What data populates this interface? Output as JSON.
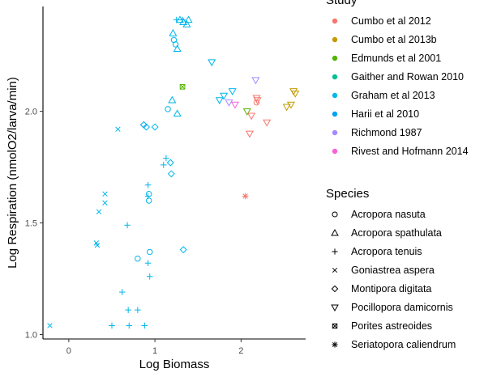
{
  "chart_data": {
    "type": "scatter",
    "xlabel": "Log Biomass",
    "ylabel": "Log Respiration (nmolO2/larva/min)",
    "xlim": [
      -0.3,
      2.75
    ],
    "ylim": [
      0.98,
      2.47
    ],
    "x_ticks": [
      0,
      1,
      2
    ],
    "y_ticks": [
      1.0,
      1.5,
      2.0
    ],
    "x_tick_labels": [
      "0",
      "1",
      "2"
    ],
    "y_tick_labels": [
      "1.0",
      "1.5",
      "2.0"
    ],
    "grid": false,
    "legend_position": "right",
    "legends": {
      "color": {
        "title": "Study",
        "entries": [
          {
            "label": "Cumbo et al 2012",
            "color": "#F8766D"
          },
          {
            "label": "Cumbo et al 2013b",
            "color": "#C49A00"
          },
          {
            "label": "Edmunds et al 2001",
            "color": "#53B400"
          },
          {
            "label": "Gaither and Rowan 2010",
            "color": "#00C094"
          },
          {
            "label": "Graham et al 2013",
            "color": "#00B6EB"
          },
          {
            "label": "Harii et al 2010",
            "color": "#00A2F3"
          },
          {
            "label": "Richmond 1987",
            "color": "#A58AFF"
          },
          {
            "label": "Rivest and Hofmann 2014",
            "color": "#FB61D7"
          }
        ]
      },
      "shape": {
        "title": "Species",
        "entries": [
          {
            "label": "Acropora nasuta",
            "shape": "circle"
          },
          {
            "label": "Acropora spathulata",
            "shape": "triangle-up"
          },
          {
            "label": "Acropora tenuis",
            "shape": "plus"
          },
          {
            "label": "Goniastrea aspera",
            "shape": "cross"
          },
          {
            "label": "Montipora digitata",
            "shape": "diamond"
          },
          {
            "label": "Pocillopora damicornis",
            "shape": "triangle-down"
          },
          {
            "label": "Porites astreoides",
            "shape": "square-cross"
          },
          {
            "label": "Seriatopora caliendrum",
            "shape": "asterisk"
          }
        ]
      }
    },
    "points": [
      {
        "x": -0.22,
        "y": 1.04,
        "study": 4,
        "shape": "cross"
      },
      {
        "x": 0.32,
        "y": 1.41,
        "study": 4,
        "shape": "cross"
      },
      {
        "x": 0.33,
        "y": 1.4,
        "study": 4,
        "shape": "cross"
      },
      {
        "x": 0.35,
        "y": 1.55,
        "study": 4,
        "shape": "cross"
      },
      {
        "x": 0.42,
        "y": 1.63,
        "study": 4,
        "shape": "cross"
      },
      {
        "x": 0.42,
        "y": 1.59,
        "study": 4,
        "shape": "cross"
      },
      {
        "x": 0.57,
        "y": 1.92,
        "study": 4,
        "shape": "cross"
      },
      {
        "x": 0.5,
        "y": 1.04,
        "study": 4,
        "shape": "plus"
      },
      {
        "x": 0.7,
        "y": 1.04,
        "study": 4,
        "shape": "plus"
      },
      {
        "x": 0.88,
        "y": 1.04,
        "study": 4,
        "shape": "plus"
      },
      {
        "x": 0.69,
        "y": 1.11,
        "study": 4,
        "shape": "plus"
      },
      {
        "x": 0.8,
        "y": 1.11,
        "study": 4,
        "shape": "plus"
      },
      {
        "x": 0.62,
        "y": 1.19,
        "study": 4,
        "shape": "plus"
      },
      {
        "x": 0.94,
        "y": 1.26,
        "study": 4,
        "shape": "plus"
      },
      {
        "x": 0.92,
        "y": 1.32,
        "study": 4,
        "shape": "plus"
      },
      {
        "x": 0.68,
        "y": 1.49,
        "study": 4,
        "shape": "plus"
      },
      {
        "x": 0.92,
        "y": 1.62,
        "study": 4,
        "shape": "plus"
      },
      {
        "x": 0.92,
        "y": 1.67,
        "study": 4,
        "shape": "plus"
      },
      {
        "x": 1.1,
        "y": 1.76,
        "study": 4,
        "shape": "plus"
      },
      {
        "x": 1.13,
        "y": 1.79,
        "study": 4,
        "shape": "plus"
      },
      {
        "x": 1.25,
        "y": 2.41,
        "study": 4,
        "shape": "plus"
      },
      {
        "x": 1.32,
        "y": 2.41,
        "study": 4,
        "shape": "plus"
      },
      {
        "x": 0.8,
        "y": 1.34,
        "study": 4,
        "shape": "circle"
      },
      {
        "x": 0.94,
        "y": 1.37,
        "study": 4,
        "shape": "circle"
      },
      {
        "x": 0.93,
        "y": 1.6,
        "study": 4,
        "shape": "circle"
      },
      {
        "x": 0.93,
        "y": 1.63,
        "study": 4,
        "shape": "circle"
      },
      {
        "x": 1.15,
        "y": 2.01,
        "study": 4,
        "shape": "circle"
      },
      {
        "x": 1.22,
        "y": 2.32,
        "study": 4,
        "shape": "circle"
      },
      {
        "x": 1.24,
        "y": 2.3,
        "study": 4,
        "shape": "circle"
      },
      {
        "x": 0.87,
        "y": 1.94,
        "study": 5,
        "shape": "diamond"
      },
      {
        "x": 0.9,
        "y": 1.93,
        "study": 4,
        "shape": "diamond"
      },
      {
        "x": 1.0,
        "y": 1.93,
        "study": 4,
        "shape": "diamond"
      },
      {
        "x": 1.18,
        "y": 1.77,
        "study": 4,
        "shape": "diamond"
      },
      {
        "x": 1.19,
        "y": 1.72,
        "study": 4,
        "shape": "diamond"
      },
      {
        "x": 1.33,
        "y": 1.38,
        "study": 4,
        "shape": "diamond"
      },
      {
        "x": 1.2,
        "y": 2.05,
        "study": 4,
        "shape": "triangle-up"
      },
      {
        "x": 1.26,
        "y": 1.99,
        "study": 4,
        "shape": "triangle-up"
      },
      {
        "x": 1.21,
        "y": 2.35,
        "study": 4,
        "shape": "triangle-up"
      },
      {
        "x": 1.26,
        "y": 2.28,
        "study": 4,
        "shape": "triangle-up"
      },
      {
        "x": 1.29,
        "y": 2.41,
        "study": 4,
        "shape": "triangle-up"
      },
      {
        "x": 1.33,
        "y": 2.4,
        "study": 4,
        "shape": "triangle-up"
      },
      {
        "x": 1.37,
        "y": 2.39,
        "study": 4,
        "shape": "triangle-up"
      },
      {
        "x": 1.39,
        "y": 2.41,
        "study": 4,
        "shape": "triangle-up"
      },
      {
        "x": 1.32,
        "y": 2.11,
        "study": 2,
        "shape": "square-cross"
      },
      {
        "x": 1.66,
        "y": 2.22,
        "study": 4,
        "shape": "triangle-down"
      },
      {
        "x": 1.75,
        "y": 2.05,
        "study": 4,
        "shape": "triangle-down"
      },
      {
        "x": 1.8,
        "y": 2.07,
        "study": 4,
        "shape": "triangle-down"
      },
      {
        "x": 1.9,
        "y": 2.09,
        "study": 4,
        "shape": "triangle-down"
      },
      {
        "x": 1.86,
        "y": 2.04,
        "study": 6,
        "shape": "triangle-down"
      },
      {
        "x": 1.93,
        "y": 2.03,
        "study": 7,
        "shape": "triangle-down"
      },
      {
        "x": 2.17,
        "y": 2.14,
        "study": 6,
        "shape": "triangle-down"
      },
      {
        "x": 2.07,
        "y": 2.0,
        "study": 2,
        "shape": "triangle-down"
      },
      {
        "x": 2.1,
        "y": 1.9,
        "study": 0,
        "shape": "triangle-down"
      },
      {
        "x": 2.12,
        "y": 1.98,
        "study": 0,
        "shape": "triangle-down"
      },
      {
        "x": 2.18,
        "y": 2.06,
        "study": 0,
        "shape": "triangle-down"
      },
      {
        "x": 2.19,
        "y": 2.05,
        "study": 0,
        "shape": "triangle-down"
      },
      {
        "x": 2.3,
        "y": 1.95,
        "study": 0,
        "shape": "triangle-down"
      },
      {
        "x": 2.18,
        "y": 2.04,
        "study": 0,
        "shape": "circle"
      },
      {
        "x": 2.53,
        "y": 2.02,
        "study": 1,
        "shape": "triangle-down"
      },
      {
        "x": 2.58,
        "y": 2.03,
        "study": 1,
        "shape": "triangle-down"
      },
      {
        "x": 2.61,
        "y": 2.09,
        "study": 1,
        "shape": "triangle-down"
      },
      {
        "x": 2.63,
        "y": 2.08,
        "study": 1,
        "shape": "triangle-down"
      },
      {
        "x": 2.05,
        "y": 1.62,
        "study": 0,
        "shape": "asterisk"
      }
    ]
  }
}
